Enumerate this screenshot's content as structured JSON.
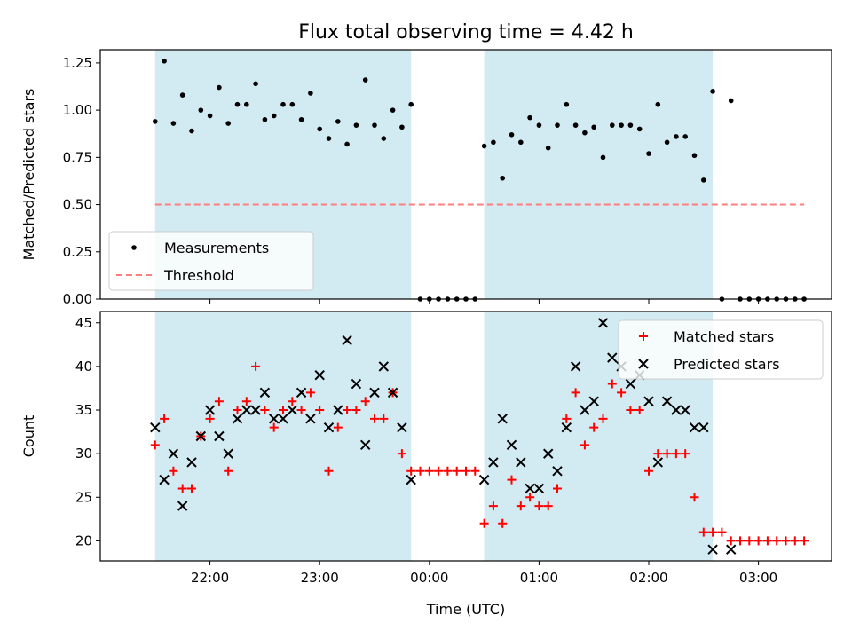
{
  "chart_data": [
    {
      "type": "scatter",
      "title": "Flux total observing time = 4.42 h",
      "ylabel": "Matched/Predicted stars",
      "xlabel": "",
      "ylim": [
        0,
        1.32
      ],
      "yticks": [
        "0.00",
        "0.25",
        "0.50",
        "0.75",
        "1.00",
        "1.25"
      ],
      "ytick_values": [
        0,
        0.25,
        0.5,
        0.75,
        1.0,
        1.25
      ],
      "legend_position": "lower-left",
      "shaded_intervals": [
        [
          "21:30",
          "23:50"
        ],
        [
          "00:30",
          "02:35"
        ]
      ],
      "shade_color": "#add8e6",
      "series": [
        {
          "name": "Measurements",
          "marker": "dot",
          "color": "#000000",
          "points": [
            [
              "21:30",
              0.94
            ],
            [
              "21:35",
              1.26
            ],
            [
              "21:40",
              0.93
            ],
            [
              "21:45",
              1.08
            ],
            [
              "21:50",
              0.89
            ],
            [
              "21:55",
              1.0
            ],
            [
              "22:00",
              0.97
            ],
            [
              "22:05",
              1.12
            ],
            [
              "22:10",
              0.93
            ],
            [
              "22:15",
              1.03
            ],
            [
              "22:20",
              1.03
            ],
            [
              "22:25",
              1.14
            ],
            [
              "22:30",
              0.95
            ],
            [
              "22:35",
              0.97
            ],
            [
              "22:40",
              1.03
            ],
            [
              "22:45",
              1.03
            ],
            [
              "22:50",
              0.95
            ],
            [
              "22:55",
              1.09
            ],
            [
              "23:00",
              0.9
            ],
            [
              "23:05",
              0.85
            ],
            [
              "23:10",
              0.94
            ],
            [
              "23:15",
              0.82
            ],
            [
              "23:20",
              0.92
            ],
            [
              "23:25",
              1.16
            ],
            [
              "23:30",
              0.92
            ],
            [
              "23:35",
              0.85
            ],
            [
              "23:40",
              1.0
            ],
            [
              "23:45",
              0.91
            ],
            [
              "23:50",
              1.03
            ],
            [
              "23:55",
              0.0
            ],
            [
              "00:00",
              0.0
            ],
            [
              "00:05",
              0.0
            ],
            [
              "00:10",
              0.0
            ],
            [
              "00:15",
              0.0
            ],
            [
              "00:20",
              0.0
            ],
            [
              "00:25",
              0.0
            ],
            [
              "00:30",
              0.81
            ],
            [
              "00:35",
              0.83
            ],
            [
              "00:40",
              0.64
            ],
            [
              "00:45",
              0.87
            ],
            [
              "00:50",
              0.83
            ],
            [
              "00:55",
              0.96
            ],
            [
              "01:00",
              0.92
            ],
            [
              "01:05",
              0.8
            ],
            [
              "01:10",
              0.92
            ],
            [
              "01:15",
              1.03
            ],
            [
              "01:20",
              0.92
            ],
            [
              "01:25",
              0.88
            ],
            [
              "01:30",
              0.91
            ],
            [
              "01:35",
              0.75
            ],
            [
              "01:40",
              0.92
            ],
            [
              "01:45",
              0.92
            ],
            [
              "01:50",
              0.92
            ],
            [
              "01:55",
              0.9
            ],
            [
              "02:00",
              0.77
            ],
            [
              "02:05",
              1.03
            ],
            [
              "02:10",
              0.83
            ],
            [
              "02:15",
              0.86
            ],
            [
              "02:20",
              0.86
            ],
            [
              "02:25",
              0.76
            ],
            [
              "02:30",
              0.63
            ],
            [
              "02:35",
              1.1
            ],
            [
              "02:40",
              0.0
            ],
            [
              "02:45",
              1.05
            ],
            [
              "02:50",
              0.0
            ],
            [
              "02:55",
              0.0
            ],
            [
              "03:00",
              0.0
            ],
            [
              "03:05",
              0.0
            ],
            [
              "03:10",
              0.0
            ],
            [
              "03:15",
              0.0
            ],
            [
              "03:20",
              0.0
            ],
            [
              "03:25",
              0.0
            ]
          ]
        },
        {
          "name": "Threshold",
          "marker": "dashed-line",
          "color": "#ff7f7f",
          "points": [
            [
              "21:30",
              0.5
            ],
            [
              "03:25",
              0.5
            ]
          ]
        }
      ]
    },
    {
      "type": "scatter",
      "title": "",
      "ylabel": "Count",
      "xlabel": "Time (UTC)",
      "ylim": [
        17.7,
        46.3
      ],
      "yticks": [
        "20",
        "25",
        "30",
        "35",
        "40",
        "45"
      ],
      "ytick_values": [
        20,
        25,
        30,
        35,
        40,
        45
      ],
      "xticks": [
        "22:00",
        "23:00",
        "00:00",
        "01:00",
        "02:00",
        "03:00"
      ],
      "legend_position": "upper-right",
      "shaded_intervals": [
        [
          "21:30",
          "23:50"
        ],
        [
          "00:30",
          "02:35"
        ]
      ],
      "shade_color": "#add8e6",
      "series": [
        {
          "name": "Matched stars",
          "marker": "plus",
          "color": "#ff0000",
          "points": [
            [
              "21:30",
              31
            ],
            [
              "21:35",
              34
            ],
            [
              "21:40",
              28
            ],
            [
              "21:45",
              26
            ],
            [
              "21:50",
              26
            ],
            [
              "21:55",
              32
            ],
            [
              "22:00",
              34
            ],
            [
              "22:05",
              36
            ],
            [
              "22:10",
              28
            ],
            [
              "22:15",
              35
            ],
            [
              "22:20",
              36
            ],
            [
              "22:25",
              40
            ],
            [
              "22:30",
              35
            ],
            [
              "22:35",
              33
            ],
            [
              "22:40",
              35
            ],
            [
              "22:45",
              36
            ],
            [
              "22:50",
              35
            ],
            [
              "22:55",
              37
            ],
            [
              "23:00",
              35
            ],
            [
              "23:05",
              28
            ],
            [
              "23:10",
              33
            ],
            [
              "23:15",
              35
            ],
            [
              "23:20",
              35
            ],
            [
              "23:25",
              36
            ],
            [
              "23:30",
              34
            ],
            [
              "23:35",
              34
            ],
            [
              "23:40",
              37
            ],
            [
              "23:45",
              30
            ],
            [
              "23:50",
              28
            ],
            [
              "23:55",
              28
            ],
            [
              "00:00",
              28
            ],
            [
              "00:05",
              28
            ],
            [
              "00:10",
              28
            ],
            [
              "00:15",
              28
            ],
            [
              "00:20",
              28
            ],
            [
              "00:25",
              28
            ],
            [
              "00:30",
              22
            ],
            [
              "00:35",
              24
            ],
            [
              "00:40",
              22
            ],
            [
              "00:45",
              27
            ],
            [
              "00:50",
              24
            ],
            [
              "00:55",
              25
            ],
            [
              "01:00",
              24
            ],
            [
              "01:05",
              24
            ],
            [
              "01:10",
              26
            ],
            [
              "01:15",
              34
            ],
            [
              "01:20",
              37
            ],
            [
              "01:25",
              31
            ],
            [
              "01:30",
              33
            ],
            [
              "01:35",
              34
            ],
            [
              "01:40",
              38
            ],
            [
              "01:45",
              37
            ],
            [
              "01:50",
              35
            ],
            [
              "01:55",
              35
            ],
            [
              "02:00",
              28
            ],
            [
              "02:05",
              30
            ],
            [
              "02:10",
              30
            ],
            [
              "02:15",
              30
            ],
            [
              "02:20",
              30
            ],
            [
              "02:25",
              25
            ],
            [
              "02:30",
              21
            ],
            [
              "02:35",
              21
            ],
            [
              "02:40",
              21
            ],
            [
              "02:45",
              20
            ],
            [
              "02:50",
              20
            ],
            [
              "02:55",
              20
            ],
            [
              "03:00",
              20
            ],
            [
              "03:05",
              20
            ],
            [
              "03:10",
              20
            ],
            [
              "03:15",
              20
            ],
            [
              "03:20",
              20
            ],
            [
              "03:25",
              20
            ]
          ]
        },
        {
          "name": "Predicted stars",
          "marker": "x",
          "color": "#000000",
          "points": [
            [
              "21:30",
              33
            ],
            [
              "21:35",
              27
            ],
            [
              "21:40",
              30
            ],
            [
              "21:45",
              24
            ],
            [
              "21:50",
              29
            ],
            [
              "21:55",
              32
            ],
            [
              "22:00",
              35
            ],
            [
              "22:05",
              32
            ],
            [
              "22:10",
              30
            ],
            [
              "22:15",
              34
            ],
            [
              "22:20",
              35
            ],
            [
              "22:25",
              35
            ],
            [
              "22:30",
              37
            ],
            [
              "22:35",
              34
            ],
            [
              "22:40",
              34
            ],
            [
              "22:45",
              35
            ],
            [
              "22:50",
              37
            ],
            [
              "22:55",
              34
            ],
            [
              "23:00",
              39
            ],
            [
              "23:05",
              33
            ],
            [
              "23:10",
              35
            ],
            [
              "23:15",
              43
            ],
            [
              "23:20",
              38
            ],
            [
              "23:25",
              31
            ],
            [
              "23:30",
              37
            ],
            [
              "23:35",
              40
            ],
            [
              "23:40",
              37
            ],
            [
              "23:45",
              33
            ],
            [
              "23:50",
              27
            ],
            [
              "00:30",
              27
            ],
            [
              "00:35",
              29
            ],
            [
              "00:40",
              34
            ],
            [
              "00:45",
              31
            ],
            [
              "00:50",
              29
            ],
            [
              "00:55",
              26
            ],
            [
              "01:00",
              26
            ],
            [
              "01:05",
              30
            ],
            [
              "01:10",
              28
            ],
            [
              "01:15",
              33
            ],
            [
              "01:20",
              40
            ],
            [
              "01:25",
              35
            ],
            [
              "01:30",
              36
            ],
            [
              "01:35",
              45
            ],
            [
              "01:40",
              41
            ],
            [
              "01:45",
              40
            ],
            [
              "01:50",
              38
            ],
            [
              "01:55",
              39
            ],
            [
              "02:00",
              36
            ],
            [
              "02:05",
              29
            ],
            [
              "02:10",
              36
            ],
            [
              "02:15",
              35
            ],
            [
              "02:20",
              35
            ],
            [
              "02:25",
              33
            ],
            [
              "02:30",
              33
            ],
            [
              "02:35",
              19
            ],
            [
              "02:45",
              19
            ]
          ]
        }
      ]
    }
  ]
}
